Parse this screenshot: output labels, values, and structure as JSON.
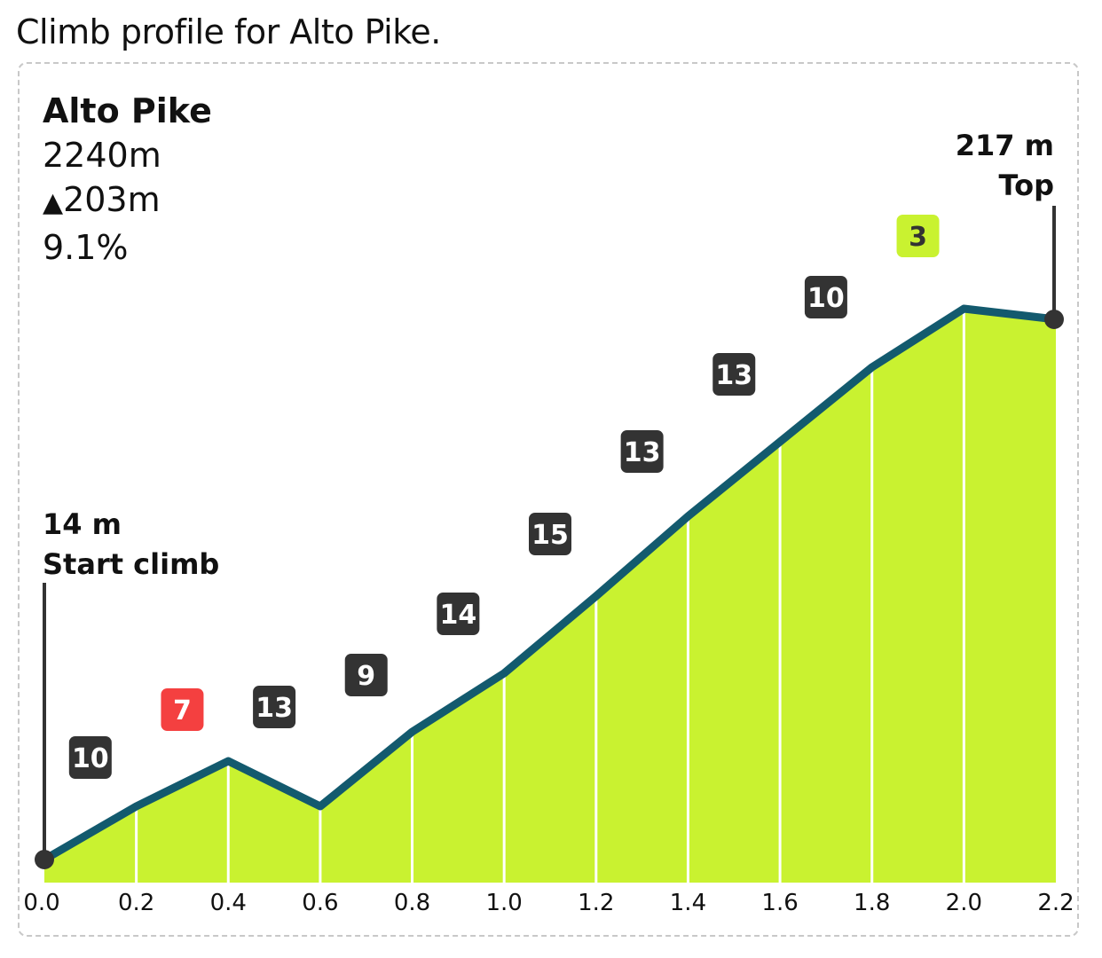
{
  "caption": "Climb profile for Alto Pike.",
  "info": {
    "name": "Alto Pike",
    "length": "2240m",
    "gain_symbol": "▲",
    "gain": "203m",
    "avg_grade": "9.1%"
  },
  "start_marker": {
    "elevation": "14 m",
    "label": "Start climb"
  },
  "top_marker": {
    "elevation": "217 m",
    "label": "Top"
  },
  "colors": {
    "fill": "#c9f230",
    "line": "#135a6e",
    "badge_dark": "#333333",
    "badge_red": "#f44040",
    "badge_lime": "#c9f230"
  },
  "chart_data": {
    "type": "area",
    "title": "",
    "xlabel": "",
    "ylabel": "",
    "x_ticks": [
      "0.0",
      "0.2",
      "0.4",
      "0.6",
      "0.8",
      "1.0",
      "1.2",
      "1.4",
      "1.6",
      "1.8",
      "2.0",
      "2.2"
    ],
    "x": [
      0.0,
      0.2,
      0.4,
      0.6,
      0.8,
      1.0,
      1.2,
      1.4,
      1.6,
      1.8,
      2.0,
      2.2
    ],
    "elevation_m": [
      14,
      34,
      51,
      34,
      62,
      84,
      113,
      143,
      171,
      199,
      221,
      217
    ],
    "segment_grades": [
      {
        "label": "10",
        "style": "dark"
      },
      {
        "label": "7",
        "style": "red"
      },
      {
        "label": "13",
        "style": "dark"
      },
      {
        "label": "9",
        "style": "dark"
      },
      {
        "label": "14",
        "style": "dark"
      },
      {
        "label": "15",
        "style": "dark"
      },
      {
        "label": "13",
        "style": "dark"
      },
      {
        "label": "13",
        "style": "dark"
      },
      {
        "label": "10",
        "style": "dark"
      },
      {
        "label": "3",
        "style": "lime"
      }
    ],
    "xlim": [
      0,
      2.2
    ],
    "ylim": [
      0,
      240
    ],
    "grid": false
  }
}
